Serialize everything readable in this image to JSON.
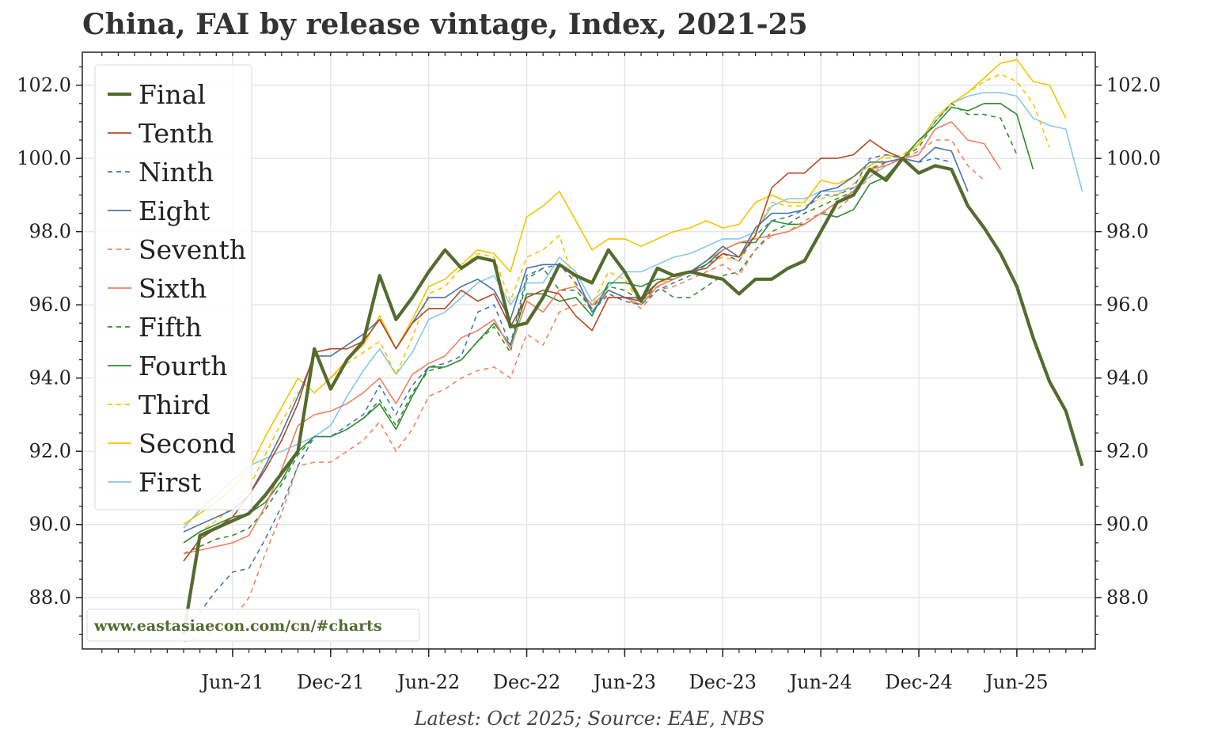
{
  "chart_data": {
    "type": "line",
    "title": "China, FAI by release vintage, Index, 2021-25",
    "footnote": "Latest: Oct 2025; Source: EAE, NBS",
    "watermark": "www.eastasiaecon.com/cn/#charts",
    "xlabel": "",
    "ylabel": "",
    "ylim": [
      86.6,
      102.9
    ],
    "yticks": [
      "88.0",
      "90.0",
      "92.0",
      "94.0",
      "96.0",
      "98.0",
      "100.0",
      "102.0"
    ],
    "xticks": [
      "Jun-21",
      "Dec-21",
      "Jun-22",
      "Dec-22",
      "Jun-23",
      "Dec-23",
      "Jun-24",
      "Dec-24",
      "Jun-25"
    ],
    "xrange_months": [
      -6.2,
      55.8
    ],
    "grid": true,
    "legend_position": "top-left",
    "series": [
      {
        "name": "Final",
        "color": "#556B2F",
        "dash": "solid",
        "width": 4.2,
        "start": 0,
        "values": [
          87.0,
          89.7,
          89.9,
          90.1,
          90.3,
          90.8,
          91.4,
          92.0,
          94.8,
          93.7,
          94.5,
          95.0,
          96.8,
          95.6,
          96.2,
          96.9,
          97.5,
          97.0,
          97.3,
          97.2,
          95.4,
          95.5,
          96.2,
          97.1,
          96.8,
          96.6,
          97.5,
          96.9,
          96.1,
          97.0,
          96.8,
          96.9,
          96.8,
          96.7,
          96.3,
          96.7,
          96.7,
          97.0,
          97.2,
          98.0,
          98.8,
          99.0,
          99.7,
          99.4,
          100.0,
          99.6,
          99.8,
          99.7,
          98.7,
          98.1,
          97.4,
          96.5,
          95.1,
          93.9,
          93.1,
          91.6
        ]
      },
      {
        "name": "Tenth",
        "color": "#B24A24",
        "dash": "solid",
        "width": 1.6,
        "start": 0,
        "values": [
          89.0,
          89.6,
          89.9,
          90.2,
          90.8,
          91.5,
          92.3,
          93.3,
          94.7,
          94.8,
          94.8,
          95.0,
          95.6,
          94.8,
          95.5,
          95.9,
          95.9,
          96.4,
          96.1,
          96.3,
          95.4,
          96.2,
          96.4,
          96.3,
          95.7,
          95.3,
          96.2,
          96.2,
          96.1,
          96.6,
          96.8,
          96.9,
          97.0,
          97.4,
          97.3,
          97.9,
          99.2,
          99.6,
          99.6,
          100.0,
          100.0,
          100.1,
          100.5,
          100.2,
          100.0,
          null,
          null,
          null,
          null,
          null,
          null,
          null,
          null,
          null,
          null,
          null
        ]
      },
      {
        "name": "Ninth",
        "color": "#3E7CB0",
        "dash": "dashed",
        "width": 1.6,
        "start": 0,
        "values": [
          87.0,
          87.6,
          88.2,
          88.7,
          88.8,
          89.6,
          90.5,
          91.6,
          92.4,
          92.4,
          92.7,
          93.0,
          93.8,
          93.0,
          93.8,
          94.3,
          94.4,
          94.6,
          95.8,
          96.0,
          94.9,
          96.8,
          97.0,
          97.1,
          96.6,
          95.8,
          96.3,
          96.1,
          96.0,
          96.4,
          96.6,
          96.8,
          97.1,
          97.4,
          97.2,
          97.9,
          98.3,
          98.4,
          98.6,
          99.0,
          99.0,
          99.2,
          100.0,
          100.1,
          100.0,
          99.9,
          100.0,
          99.9,
          null,
          null,
          null,
          null,
          null,
          null,
          null,
          null
        ]
      },
      {
        "name": "Eight",
        "color": "#4A74A8",
        "dash": "solid",
        "width": 1.6,
        "start": 0,
        "values": [
          89.8,
          90.0,
          90.2,
          90.4,
          90.8,
          91.6,
          92.5,
          93.5,
          94.6,
          94.6,
          94.9,
          95.2,
          95.6,
          94.8,
          95.5,
          96.2,
          96.2,
          96.5,
          96.7,
          96.4,
          95.6,
          97.0,
          97.1,
          97.1,
          96.8,
          95.8,
          96.4,
          96.2,
          96.2,
          96.6,
          96.8,
          96.9,
          97.2,
          97.6,
          97.3,
          98.1,
          98.5,
          98.5,
          98.6,
          99.1,
          99.2,
          99.5,
          99.9,
          99.9,
          100.0,
          99.9,
          100.3,
          100.2,
          99.1,
          null,
          null,
          null,
          null,
          null,
          null,
          null
        ]
      },
      {
        "name": "Seventh",
        "color": "#F0845C",
        "dash": "dashed",
        "width": 1.6,
        "start": 0,
        "values": [
          86.8,
          86.9,
          87.1,
          87.4,
          88.0,
          89.2,
          90.3,
          91.6,
          91.7,
          91.7,
          92.0,
          92.3,
          92.8,
          92.0,
          92.6,
          93.5,
          93.7,
          94.0,
          94.2,
          94.3,
          94.0,
          95.2,
          94.9,
          95.8,
          96.0,
          96.0,
          96.2,
          96.2,
          95.9,
          96.4,
          96.5,
          96.7,
          96.9,
          97.1,
          96.8,
          97.5,
          97.9,
          98.0,
          98.3,
          98.5,
          98.6,
          99.0,
          99.5,
          99.9,
          100.0,
          100.2,
          100.5,
          100.5,
          99.8,
          99.4,
          null,
          null,
          null,
          null,
          null,
          null
        ]
      },
      {
        "name": "Sixth",
        "color": "#F08060",
        "dash": "solid",
        "width": 1.6,
        "start": 0,
        "values": [
          89.2,
          89.3,
          89.4,
          89.5,
          89.7,
          90.5,
          91.5,
          92.7,
          93.0,
          93.1,
          93.3,
          93.6,
          94.0,
          93.3,
          94.1,
          94.4,
          94.6,
          95.1,
          95.3,
          95.6,
          94.8,
          96.1,
          95.8,
          96.4,
          96.5,
          96.0,
          96.4,
          96.2,
          96.0,
          96.5,
          96.7,
          96.9,
          97.2,
          97.5,
          97.7,
          97.8,
          97.9,
          98.0,
          98.2,
          98.5,
          98.8,
          99.1,
          99.7,
          99.8,
          100.0,
          100.1,
          100.8,
          101.0,
          100.5,
          100.4,
          99.7,
          null,
          null,
          null,
          null,
          null
        ]
      },
      {
        "name": "Fifth",
        "color": "#3A8A3A",
        "dash": "dashed",
        "width": 1.6,
        "start": 0,
        "values": [
          89.2,
          89.4,
          89.6,
          89.7,
          89.9,
          90.4,
          91.1,
          91.9,
          92.4,
          92.4,
          92.6,
          92.9,
          93.4,
          92.7,
          93.6,
          94.2,
          94.3,
          94.5,
          95.0,
          95.4,
          94.7,
          96.7,
          97.0,
          96.4,
          96.4,
          95.9,
          96.5,
          96.4,
          96.1,
          96.5,
          96.2,
          96.2,
          96.5,
          96.8,
          96.9,
          97.5,
          98.0,
          98.2,
          98.5,
          98.7,
          98.9,
          99.1,
          99.7,
          99.9,
          100.0,
          100.3,
          101.0,
          101.5,
          101.2,
          101.2,
          101.1,
          100.1,
          null,
          null,
          null,
          null
        ]
      },
      {
        "name": "Fourth",
        "color": "#2E8B2E",
        "dash": "solid",
        "width": 1.6,
        "start": 0,
        "values": [
          89.5,
          89.8,
          90.0,
          90.2,
          90.3,
          90.6,
          91.2,
          92.0,
          92.4,
          92.4,
          92.6,
          92.9,
          93.3,
          92.6,
          93.5,
          94.3,
          94.3,
          94.5,
          95.0,
          95.5,
          94.9,
          96.3,
          96.3,
          96.1,
          96.2,
          95.7,
          96.6,
          96.6,
          96.5,
          96.7,
          96.7,
          96.9,
          97.1,
          97.5,
          97.7,
          97.7,
          98.3,
          98.2,
          98.2,
          98.5,
          98.4,
          98.6,
          99.3,
          99.5,
          100.0,
          100.5,
          100.9,
          101.4,
          101.3,
          101.5,
          101.5,
          101.2,
          99.7,
          null,
          null,
          null
        ]
      },
      {
        "name": "Third",
        "color": "#F5C400",
        "dash": "dashed",
        "width": 1.6,
        "start": 0,
        "values": [
          89.5,
          89.8,
          90.1,
          90.5,
          91.0,
          91.9,
          92.8,
          93.6,
          93.6,
          94.0,
          94.4,
          94.7,
          95.0,
          94.1,
          95.1,
          96.3,
          96.5,
          97.0,
          97.4,
          97.3,
          96.1,
          97.3,
          97.5,
          97.9,
          96.5,
          96.0,
          96.9,
          96.7,
          96.0,
          96.6,
          96.7,
          96.9,
          97.1,
          97.3,
          97.2,
          98.0,
          98.8,
          98.7,
          98.7,
          98.9,
          99.0,
          99.3,
          99.7,
          100.0,
          100.1,
          100.4,
          101.1,
          101.5,
          101.8,
          102.1,
          102.3,
          102.1,
          101.5,
          100.3,
          null,
          null
        ]
      },
      {
        "name": "Second",
        "color": "#F5C400",
        "dash": "solid",
        "width": 1.6,
        "start": 0,
        "values": [
          90.0,
          90.3,
          90.6,
          91.0,
          91.5,
          92.4,
          93.2,
          94.0,
          93.6,
          94.0,
          94.5,
          94.9,
          95.7,
          94.8,
          95.6,
          96.5,
          96.7,
          97.1,
          97.5,
          97.4,
          96.9,
          98.4,
          98.7,
          99.1,
          98.3,
          97.5,
          97.8,
          97.8,
          97.6,
          97.8,
          98.0,
          98.1,
          98.3,
          98.1,
          98.2,
          98.8,
          99.0,
          98.8,
          98.8,
          99.4,
          99.3,
          99.5,
          99.8,
          100.1,
          100.0,
          100.4,
          101.1,
          101.5,
          101.8,
          102.2,
          102.6,
          102.7,
          102.1,
          102.0,
          101.1,
          null
        ]
      },
      {
        "name": "First",
        "color": "#87C8E6",
        "dash": "solid",
        "width": 1.6,
        "start": 0,
        "values": [
          89.9,
          90.4,
          90.8,
          91.2,
          91.6,
          91.8,
          92.0,
          92.2,
          92.4,
          92.7,
          93.5,
          94.2,
          94.8,
          94.1,
          94.7,
          95.6,
          95.8,
          96.2,
          96.6,
          96.8,
          96.0,
          96.6,
          96.6,
          97.3,
          96.9,
          96.1,
          96.5,
          96.9,
          96.9,
          97.1,
          97.3,
          97.4,
          97.6,
          97.8,
          97.8,
          98.0,
          98.7,
          98.9,
          98.9,
          99.1,
          99.1,
          99.2,
          99.5,
          99.8,
          100.0,
          100.4,
          101.0,
          101.5,
          101.7,
          101.8,
          101.8,
          101.7,
          101.1,
          100.9,
          100.8,
          99.1
        ]
      }
    ]
  }
}
